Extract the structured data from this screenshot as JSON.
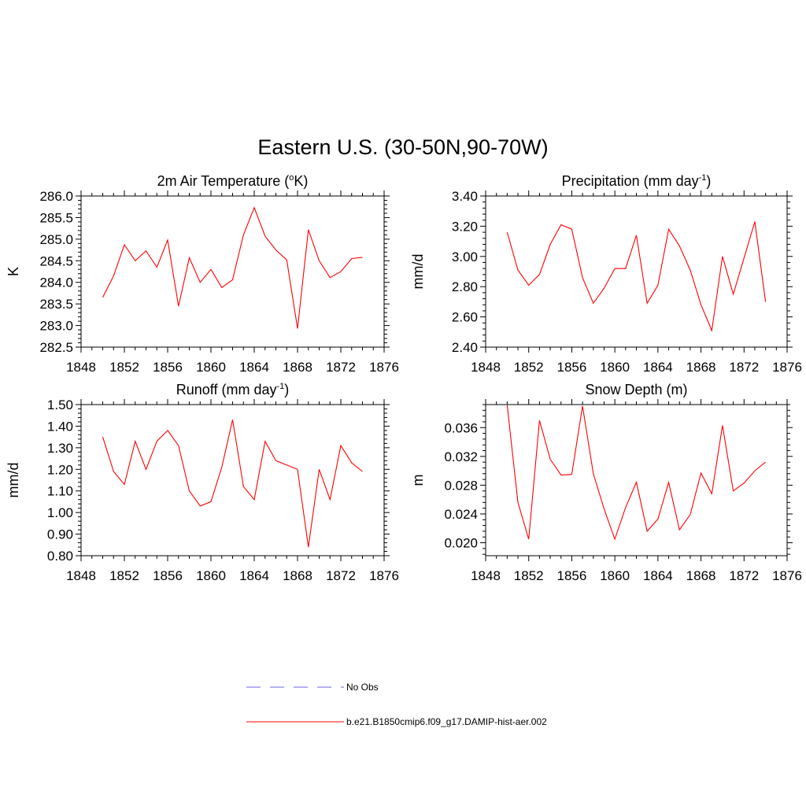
{
  "figure": {
    "title": "Eastern U.S. (30-50N,90-70W)",
    "series_color": "#ff0000",
    "obs_color": "#9999ee"
  },
  "legend": {
    "obs_label": "No Obs",
    "model_label": "b.e21.B1850cmip6.f09_g17.DAMIP-hist-aer.002"
  },
  "chart_data": [
    {
      "type": "line",
      "title": "2m Air Temperature (",
      "title_super": "o",
      "title_tail": "K)",
      "ylabel": "K",
      "xlim": [
        1848,
        1876
      ],
      "ylim": [
        282.5,
        286.0
      ],
      "xticks": [
        "1848",
        "1852",
        "1856",
        "1860",
        "1864",
        "1868",
        "1872",
        "1876"
      ],
      "yticks": [
        "282.5",
        "283.0",
        "283.5",
        "284.0",
        "284.5",
        "285.0",
        "285.5",
        "286.0"
      ],
      "x": [
        1850,
        1851,
        1852,
        1853,
        1854,
        1855,
        1856,
        1857,
        1858,
        1859,
        1860,
        1861,
        1862,
        1863,
        1864,
        1865,
        1866,
        1867,
        1868,
        1869,
        1870,
        1871,
        1872,
        1873,
        1874
      ],
      "series": [
        {
          "values": [
            283.65,
            284.15,
            284.87,
            284.5,
            284.73,
            284.35,
            284.98,
            283.45,
            284.57,
            284.0,
            284.3,
            283.88,
            284.06,
            285.1,
            285.73,
            285.07,
            284.75,
            284.52,
            282.93,
            285.22,
            284.5,
            284.11,
            284.25,
            284.55,
            284.58
          ]
        }
      ]
    },
    {
      "type": "line",
      "title": "Precipitation (mm day",
      "title_super": "-1",
      "title_tail": ")",
      "ylabel": "mm/d",
      "xlim": [
        1848,
        1876
      ],
      "ylim": [
        2.4,
        3.4
      ],
      "xticks": [
        "1848",
        "1852",
        "1856",
        "1860",
        "1864",
        "1868",
        "1872",
        "1876"
      ],
      "yticks": [
        "2.40",
        "2.60",
        "2.80",
        "3.00",
        "3.20",
        "3.40"
      ],
      "x": [
        1850,
        1851,
        1852,
        1853,
        1854,
        1855,
        1856,
        1857,
        1858,
        1859,
        1860,
        1861,
        1862,
        1863,
        1864,
        1865,
        1866,
        1867,
        1868,
        1869,
        1870,
        1871,
        1872,
        1873,
        1874
      ],
      "series": [
        {
          "values": [
            3.16,
            2.91,
            2.81,
            2.88,
            3.08,
            3.21,
            3.18,
            2.86,
            2.69,
            2.79,
            2.92,
            2.92,
            3.14,
            2.69,
            2.81,
            3.18,
            3.07,
            2.91,
            2.68,
            2.51,
            3.0,
            2.75,
            2.99,
            3.23,
            2.7
          ]
        }
      ]
    },
    {
      "type": "line",
      "title": "Runoff (mm day",
      "title_super": "-1",
      "title_tail": ")",
      "ylabel": "mm/d",
      "xlim": [
        1848,
        1876
      ],
      "ylim": [
        0.8,
        1.5
      ],
      "xticks": [
        "1848",
        "1852",
        "1856",
        "1860",
        "1864",
        "1868",
        "1872",
        "1876"
      ],
      "yticks": [
        "0.80",
        "0.90",
        "1.00",
        "1.10",
        "1.20",
        "1.30",
        "1.40",
        "1.50"
      ],
      "x": [
        1850,
        1851,
        1852,
        1853,
        1854,
        1855,
        1856,
        1857,
        1858,
        1859,
        1860,
        1861,
        1862,
        1863,
        1864,
        1865,
        1866,
        1867,
        1868,
        1869,
        1870,
        1871,
        1872,
        1873,
        1874
      ],
      "series": [
        {
          "values": [
            1.35,
            1.19,
            1.13,
            1.33,
            1.2,
            1.33,
            1.38,
            1.31,
            1.1,
            1.03,
            1.05,
            1.21,
            1.43,
            1.12,
            1.06,
            1.33,
            1.24,
            1.22,
            1.2,
            0.84,
            1.2,
            1.06,
            1.31,
            1.23,
            1.19
          ]
        }
      ]
    },
    {
      "type": "line",
      "title": "Snow Depth (m)",
      "title_super": "",
      "title_tail": "",
      "ylabel": "m",
      "xlim": [
        1848,
        1876
      ],
      "ylim": [
        0.0182,
        0.0392
      ],
      "xticks": [
        "1848",
        "1852",
        "1856",
        "1860",
        "1864",
        "1868",
        "1872",
        "1876"
      ],
      "yticks": [
        "0.020",
        "0.024",
        "0.028",
        "0.032",
        "0.036"
      ],
      "ytick_values": [
        0.02,
        0.024,
        0.028,
        0.032,
        0.036
      ],
      "x": [
        1850,
        1851,
        1852,
        1853,
        1854,
        1855,
        1856,
        1857,
        1858,
        1859,
        1860,
        1861,
        1862,
        1863,
        1864,
        1865,
        1866,
        1867,
        1868,
        1869,
        1870,
        1871,
        1872,
        1873,
        1874
      ],
      "series": [
        {
          "values": [
            0.0391,
            0.0256,
            0.0205,
            0.037,
            0.0316,
            0.0294,
            0.0295,
            0.039,
            0.0296,
            0.0247,
            0.0205,
            0.0249,
            0.0284,
            0.0216,
            0.0233,
            0.0284,
            0.0218,
            0.0239,
            0.0297,
            0.0268,
            0.0363,
            0.0272,
            0.0283,
            0.03,
            0.0312
          ]
        }
      ]
    }
  ]
}
